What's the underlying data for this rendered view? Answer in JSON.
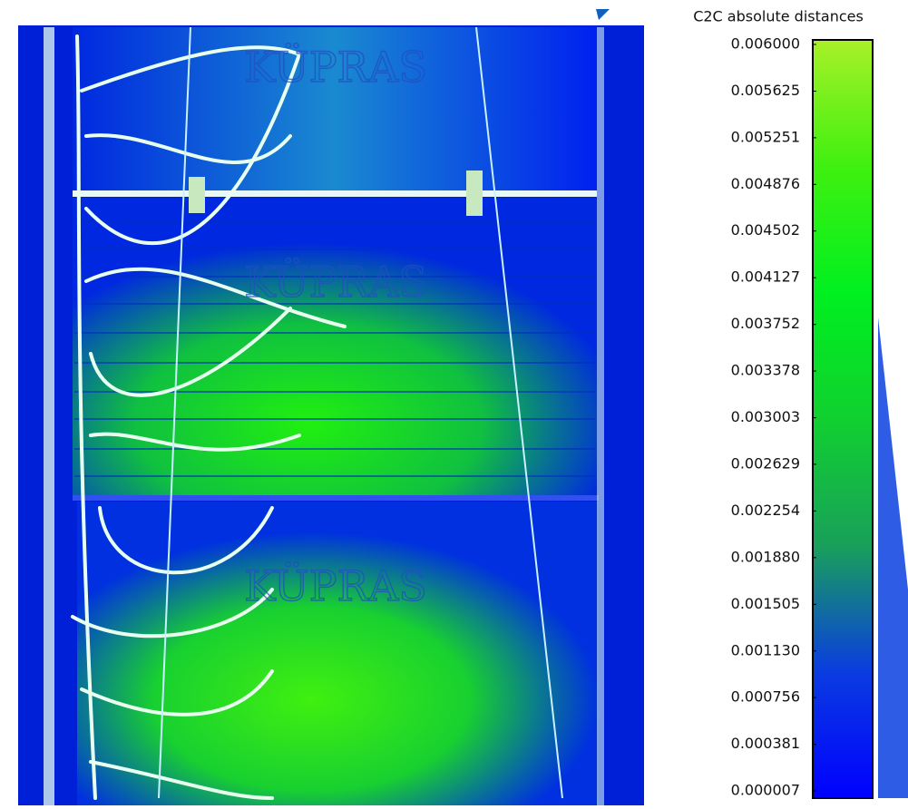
{
  "chart_data": {
    "type": "colorbar",
    "title": "C2C absolute distances",
    "ylim": [
      7e-06,
      0.006
    ],
    "yticks": [
      {
        "value": 7e-06,
        "label": "0.000007"
      },
      {
        "value": 0.000381,
        "label": "0.000381"
      },
      {
        "value": 0.000756,
        "label": "0.000756"
      },
      {
        "value": 0.00113,
        "label": "0.001130"
      },
      {
        "value": 0.001505,
        "label": "0.001505"
      },
      {
        "value": 0.00188,
        "label": "0.001880"
      },
      {
        "value": 0.002254,
        "label": "0.002254"
      },
      {
        "value": 0.002629,
        "label": "0.002629"
      },
      {
        "value": 0.003003,
        "label": "0.003003"
      },
      {
        "value": 0.003378,
        "label": "0.003378"
      },
      {
        "value": 0.003752,
        "label": "0.003752"
      },
      {
        "value": 0.004127,
        "label": "0.004127"
      },
      {
        "value": 0.004502,
        "label": "0.004502"
      },
      {
        "value": 0.004876,
        "label": "0.004876"
      },
      {
        "value": 0.005251,
        "label": "0.005251"
      },
      {
        "value": 0.005625,
        "label": "0.005625"
      },
      {
        "value": 0.006,
        "label": "0.006000"
      }
    ],
    "colors": [
      "#0000ff",
      "#0a3ce0",
      "#19a05a",
      "#10d030",
      "#00f020",
      "#40f010",
      "#a8f028"
    ],
    "image_labels": [
      "KÜPRAS",
      "KÜPRAS",
      "KÜPRAS"
    ]
  }
}
